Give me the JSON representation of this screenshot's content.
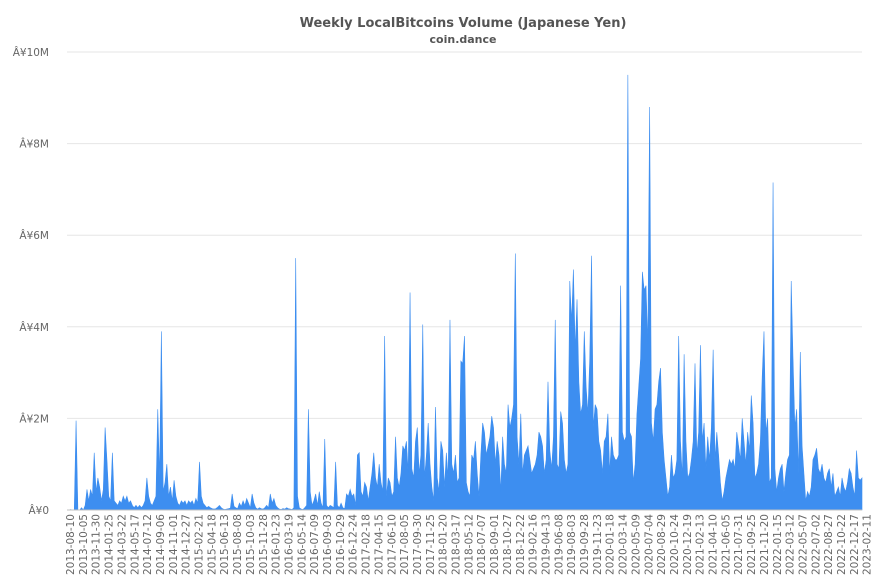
{
  "chart_data": {
    "type": "area",
    "title": "Weekly LocalBitcoins Volume (Japanese Yen)",
    "subtitle": "coin.dance",
    "xlabel": "",
    "ylabel": "",
    "ylim": [
      0,
      10000000
    ],
    "y_ticks": [
      {
        "value": 0,
        "label": "Â¥0"
      },
      {
        "value": 2000000,
        "label": "Â¥2M"
      },
      {
        "value": 4000000,
        "label": "Â¥4M"
      },
      {
        "value": 6000000,
        "label": "Â¥6M"
      },
      {
        "value": 8000000,
        "label": "Â¥8M"
      },
      {
        "value": 10000000,
        "label": "Â¥10M"
      }
    ],
    "x_tick_labels": [
      "2013-08-10",
      "2013-10-05",
      "2013-11-30",
      "2014-01-25",
      "2014-03-22",
      "2014-05-17",
      "2014-07-12",
      "2014-09-06",
      "2014-11-01",
      "2014-12-27",
      "2015-02-21",
      "2015-04-18",
      "2015-06-13",
      "2015-08-08",
      "2015-10-03",
      "2015-11-28",
      "2016-01-23",
      "2016-03-19",
      "2016-05-14",
      "2016-07-09",
      "2016-09-03",
      "2016-10-29",
      "2016-12-24",
      "2017-02-18",
      "2017-04-15",
      "2017-06-10",
      "2017-08-05",
      "2017-09-30",
      "2017-11-25",
      "2018-01-20",
      "2018-03-17",
      "2018-05-12",
      "2018-07-07",
      "2018-09-01",
      "2018-10-27",
      "2018-12-22",
      "2019-02-16",
      "2019-04-13",
      "2019-06-08",
      "2019-08-03",
      "2019-09-28",
      "2019-11-23",
      "2020-01-18",
      "2020-03-14",
      "2020-05-09",
      "2020-07-04",
      "2020-08-29",
      "2020-10-24",
      "2020-12-19",
      "2021-02-13",
      "2021-04-10",
      "2021-06-05",
      "2021-07-31",
      "2021-09-25",
      "2021-11-20",
      "2022-01-15",
      "2022-03-12",
      "2022-05-07",
      "2022-07-02",
      "2022-08-27",
      "2022-10-22",
      "2022-12-17",
      "2023-02-11"
    ],
    "grid": true,
    "legend": "none",
    "color": "#3d8ef0",
    "series": [
      {
        "x_start": "2013-08-10",
        "x_end": "2023-02-18",
        "values": [
          0,
          0,
          10000,
          0,
          0,
          1950000,
          0,
          0,
          50000,
          0,
          100000,
          450000,
          200000,
          450000,
          300000,
          1250000,
          400000,
          700000,
          500000,
          200000,
          450000,
          1800000,
          1100000,
          300000,
          200000,
          1250000,
          200000,
          150000,
          100000,
          200000,
          150000,
          300000,
          200000,
          300000,
          150000,
          200000,
          100000,
          50000,
          100000,
          50000,
          100000,
          50000,
          100000,
          200000,
          700000,
          300000,
          150000,
          100000,
          200000,
          300000,
          2200000,
          700000,
          3900000,
          400000,
          600000,
          1000000,
          300000,
          500000,
          200000,
          650000,
          300000,
          150000,
          100000,
          200000,
          150000,
          200000,
          100000,
          200000,
          150000,
          200000,
          100000,
          250000,
          150000,
          1050000,
          300000,
          150000,
          100000,
          50000,
          80000,
          50000,
          30000,
          20000,
          30000,
          60000,
          100000,
          50000,
          20000,
          10000,
          20000,
          30000,
          40000,
          350000,
          80000,
          50000,
          30000,
          150000,
          80000,
          200000,
          100000,
          250000,
          150000,
          50000,
          350000,
          150000,
          50000,
          20000,
          50000,
          30000,
          20000,
          50000,
          100000,
          50000,
          350000,
          150000,
          250000,
          100000,
          50000,
          20000,
          10000,
          30000,
          20000,
          50000,
          30000,
          20000,
          10000,
          50000,
          5500000,
          300000,
          50000,
          20000,
          10000,
          50000,
          100000,
          2200000,
          400000,
          100000,
          200000,
          350000,
          100000,
          400000,
          150000,
          50000,
          1550000,
          100000,
          50000,
          100000,
          80000,
          50000,
          1050000,
          100000,
          50000,
          150000,
          50000,
          30000,
          350000,
          300000,
          450000,
          300000,
          350000,
          100000,
          1200000,
          1250000,
          400000,
          300000,
          600000,
          500000,
          200000,
          500000,
          800000,
          1250000,
          700000,
          500000,
          1000000,
          600000,
          400000,
          3800000,
          300000,
          700000,
          600000,
          300000,
          400000,
          1600000,
          700000,
          500000,
          800000,
          1400000,
          1300000,
          1500000,
          800000,
          4750000,
          900000,
          700000,
          1500000,
          1800000,
          800000,
          1200000,
          4050000,
          700000,
          1200000,
          1900000,
          1000000,
          500000,
          200000,
          2250000,
          700000,
          400000,
          1500000,
          1300000,
          500000,
          1250000,
          700000,
          4150000,
          1000000,
          800000,
          1200000,
          600000,
          700000,
          3250000,
          3200000,
          3800000,
          600000,
          400000,
          300000,
          1200000,
          1100000,
          1500000,
          800000,
          300000,
          1200000,
          1900000,
          1700000,
          1200000,
          1400000,
          1600000,
          2050000,
          1800000,
          1000000,
          1500000,
          1200000,
          400000,
          1600000,
          1000000,
          800000,
          2300000,
          1800000,
          2000000,
          2300000,
          5600000,
          1600000,
          1000000,
          2100000,
          800000,
          1200000,
          1300000,
          1400000,
          1100000,
          800000,
          900000,
          1000000,
          1200000,
          1700000,
          1600000,
          1400000,
          800000,
          1100000,
          2800000,
          1300000,
          900000,
          1600000,
          4150000,
          1000000,
          900000,
          2150000,
          1900000,
          1100000,
          800000,
          1000000,
          5000000,
          4100000,
          5250000,
          3500000,
          4600000,
          2800000,
          2100000,
          2300000,
          3900000,
          2700000,
          2100000,
          3300000,
          5550000,
          1800000,
          2300000,
          2200000,
          1500000,
          1300000,
          800000,
          1500000,
          1600000,
          2100000,
          800000,
          1600000,
          1200000,
          1100000,
          1100000,
          1200000,
          4900000,
          1700000,
          1500000,
          1600000,
          9500000,
          1700000,
          1600000,
          600000,
          1000000,
          2100000,
          2700000,
          3300000,
          5200000,
          4800000,
          4900000,
          3600000,
          8800000,
          1900000,
          1500000,
          2200000,
          2300000,
          2800000,
          3100000,
          1700000,
          1100000,
          700000,
          300000,
          500000,
          1200000,
          700000,
          800000,
          1100000,
          3800000,
          1500000,
          700000,
          3400000,
          1500000,
          700000,
          800000,
          1100000,
          1500000,
          3200000,
          1200000,
          1700000,
          3600000,
          1500000,
          1900000,
          900000,
          1600000,
          1100000,
          1800000,
          3500000,
          1100000,
          1700000,
          1200000,
          600000,
          200000,
          400000,
          700000,
          900000,
          1100000,
          1000000,
          1100000,
          900000,
          1700000,
          1400000,
          1100000,
          2000000,
          1500000,
          1000000,
          1700000,
          1300000,
          2500000,
          1900000,
          700000,
          800000,
          1000000,
          1500000,
          2900000,
          3900000,
          1700000,
          2000000,
          600000,
          700000,
          7150000,
          900000,
          400000,
          700000,
          900000,
          1000000,
          400000,
          800000,
          1100000,
          1200000,
          5000000,
          3300000,
          1800000,
          2200000,
          800000,
          3450000,
          1400000,
          800000,
          200000,
          400000,
          300000,
          500000,
          1100000,
          1200000,
          1350000,
          900000,
          800000,
          1000000,
          700000,
          600000,
          800000,
          900000,
          500000,
          800000,
          300000,
          400000,
          500000,
          300000,
          700000,
          500000,
          400000,
          600000,
          900000,
          800000,
          500000,
          300000,
          1300000,
          700000,
          650000,
          700000
        ]
      }
    ]
  }
}
